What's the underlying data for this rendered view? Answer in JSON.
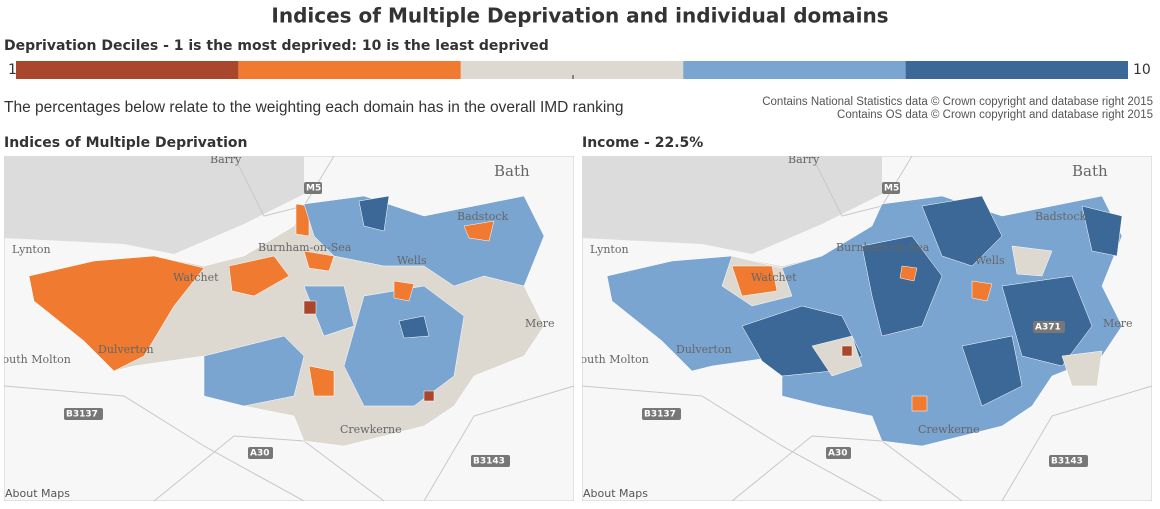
{
  "header": {
    "title": "Indices of Multiple Deprivation and individual domains"
  },
  "legend": {
    "title": "Deprivation Deciles - 1 is the most deprived: 10 is the least deprived",
    "min_label": 1,
    "max_label": 10,
    "colors": [
      "#a9472c",
      "#ef7a30",
      "#ddd9d1",
      "#7aa5d1",
      "#3b6896"
    ]
  },
  "note": "The percentages below relate to the weighting each domain has in the overall IMD ranking",
  "attribution": [
    "Contains National Statistics data © Crown copyright and database right 2015",
    "Contains OS data © Crown copyright and database right 2015"
  ],
  "maps": [
    {
      "title": "Indices of Multiple Deprivation",
      "labels": [
        "Barry",
        "Bath",
        "Lynton",
        "Watchet",
        "Burnham-on-Sea",
        "Badstock",
        "Wells",
        "Dulverton",
        "South Molton",
        "Mere",
        "Crewkerne"
      ],
      "roads": [
        "M5",
        "B3137",
        "A30",
        "B3143"
      ],
      "footer": "About Maps"
    },
    {
      "title": "Income - 22.5%",
      "labels": [
        "Barry",
        "Bath",
        "Lynton",
        "Watchet",
        "Burnham-on-Sea",
        "Badstock",
        "Wells",
        "Dulverton",
        "South Molton",
        "Mere",
        "Crewkerne"
      ],
      "roads": [
        "M5",
        "B3137",
        "A30",
        "B3143",
        "A371"
      ],
      "footer": "About Maps"
    }
  ]
}
